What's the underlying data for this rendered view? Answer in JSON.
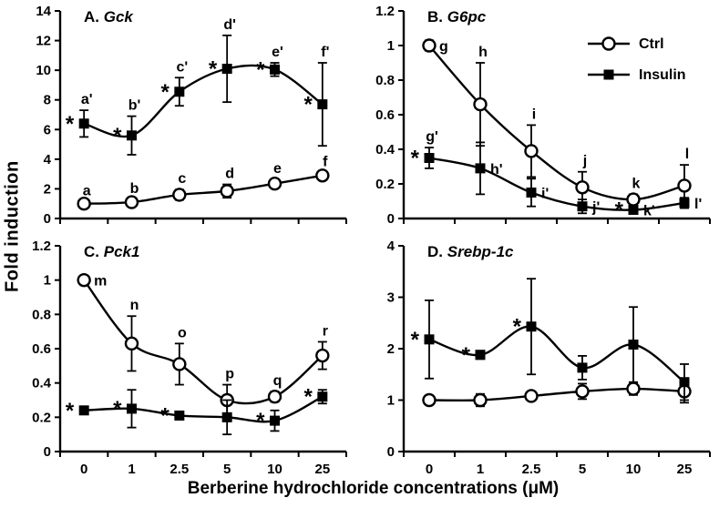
{
  "figure": {
    "ylabel": "Fold induction",
    "xlabel": "Berberine hydrochloride concentrations (μM)",
    "background_color": "#ffffff",
    "ink_color": "#000000"
  },
  "legend": {
    "position": "top-right-of-panel-B",
    "items": [
      {
        "label": "Ctrl",
        "marker": "circle-open"
      },
      {
        "label": "Insulin",
        "marker": "square-filled"
      }
    ]
  },
  "chart_data": [
    {
      "type": "line",
      "panel": "A",
      "title_prefix": "A.",
      "gene": "Gck",
      "categories": [
        "0",
        "1",
        "2.5",
        "5",
        "10",
        "25"
      ],
      "ylim": [
        0,
        14
      ],
      "yticks": [
        "0",
        "2",
        "4",
        "6",
        "8",
        "10",
        "12",
        "14"
      ],
      "grid": false,
      "series": [
        {
          "name": "Ctrl",
          "marker": "circle-open",
          "values": [
            1.0,
            1.1,
            1.6,
            1.85,
            2.35,
            2.9
          ],
          "errors": [
            0.15,
            0.2,
            0.35,
            0.45,
            0.3,
            0.2
          ],
          "point_labels": [
            "a",
            "b",
            "c",
            "d",
            "e",
            "f"
          ],
          "label_side": [
            "above",
            "above",
            "above",
            "above",
            "above",
            "above"
          ],
          "sig": [
            false,
            false,
            false,
            false,
            false,
            false
          ]
        },
        {
          "name": "Insulin",
          "marker": "square-filled",
          "values": [
            6.4,
            5.6,
            8.55,
            10.1,
            10.05,
            7.7
          ],
          "errors": [
            0.9,
            1.3,
            0.95,
            2.25,
            0.45,
            2.8
          ],
          "point_labels": [
            "a'",
            "b'",
            "c'",
            "d'",
            "e'",
            "f'"
          ],
          "label_side": [
            "above",
            "above",
            "above",
            "above",
            "above",
            "above"
          ],
          "sig": [
            true,
            true,
            true,
            true,
            true,
            true
          ]
        }
      ]
    },
    {
      "type": "line",
      "panel": "B",
      "title_prefix": "B.",
      "gene": "G6pc",
      "categories": [
        "0",
        "1",
        "2.5",
        "5",
        "10",
        "25"
      ],
      "ylim": [
        0,
        1.2
      ],
      "yticks": [
        "0",
        "0.2",
        "0.4",
        "0.6",
        "0.8",
        "1",
        "1.2"
      ],
      "grid": false,
      "series": [
        {
          "name": "Ctrl",
          "marker": "circle-open",
          "values": [
            1.0,
            0.66,
            0.39,
            0.18,
            0.11,
            0.19
          ],
          "errors": [
            0.03,
            0.24,
            0.15,
            0.09,
            0.03,
            0.12
          ],
          "point_labels": [
            "g",
            "h",
            "i",
            "j",
            "k",
            "l"
          ],
          "label_side": [
            "right",
            "above",
            "above",
            "above",
            "above",
            "above"
          ],
          "sig": [
            false,
            false,
            false,
            false,
            false,
            false
          ]
        },
        {
          "name": "Insulin",
          "marker": "square-filled",
          "values": [
            0.35,
            0.29,
            0.15,
            0.07,
            0.05,
            0.09
          ],
          "errors": [
            0.06,
            0.15,
            0.08,
            0.04,
            0.02,
            0.03
          ],
          "point_labels": [
            "g'",
            "h'",
            "i'",
            "j'",
            "k'",
            "l'"
          ],
          "label_side": [
            "above",
            "right",
            "right",
            "right",
            "right",
            "right"
          ],
          "sig": [
            true,
            false,
            false,
            false,
            true,
            false
          ]
        }
      ]
    },
    {
      "type": "line",
      "panel": "C",
      "title_prefix": "C.",
      "gene": "Pck1",
      "categories": [
        "0",
        "1",
        "2.5",
        "5",
        "10",
        "25"
      ],
      "ylim": [
        0,
        1.2
      ],
      "yticks": [
        "0",
        "0.2",
        "0.4",
        "0.6",
        "0.8",
        "1",
        "1.2"
      ],
      "grid": false,
      "series": [
        {
          "name": "Ctrl",
          "marker": "circle-open",
          "values": [
            1.0,
            0.63,
            0.51,
            0.3,
            0.32,
            0.56
          ],
          "errors": [
            0.02,
            0.16,
            0.12,
            0.09,
            0.03,
            0.08
          ],
          "point_labels": [
            "m",
            "n",
            "o",
            "p",
            "q",
            "r"
          ],
          "label_side": [
            "right",
            "above",
            "above",
            "above",
            "above",
            "above"
          ],
          "sig": [
            false,
            false,
            false,
            false,
            false,
            false
          ]
        },
        {
          "name": "Insulin",
          "marker": "square-filled",
          "values": [
            0.24,
            0.25,
            0.21,
            0.2,
            0.18,
            0.32
          ],
          "errors": [
            0.02,
            0.11,
            0.02,
            0.1,
            0.06,
            0.04
          ],
          "point_labels": [
            "",
            "",
            "",
            "",
            "",
            ""
          ],
          "label_side": [
            "above",
            "above",
            "above",
            "above",
            "above",
            "above"
          ],
          "sig": [
            true,
            true,
            true,
            false,
            true,
            true
          ]
        }
      ]
    },
    {
      "type": "line",
      "panel": "D",
      "title_prefix": "D.",
      "gene": "Srebp-1c",
      "categories": [
        "0",
        "1",
        "2.5",
        "5",
        "10",
        "25"
      ],
      "ylim": [
        0,
        4
      ],
      "yticks": [
        "0",
        "1",
        "2",
        "3",
        "4"
      ],
      "grid": false,
      "series": [
        {
          "name": "Ctrl",
          "marker": "circle-open",
          "values": [
            1.0,
            1.0,
            1.08,
            1.17,
            1.22,
            1.17
          ],
          "errors": [
            0.04,
            0.12,
            0.08,
            0.15,
            0.12,
            0.22
          ],
          "point_labels": [
            "",
            "",
            "",
            "",
            "",
            ""
          ],
          "label_side": [
            "above",
            "above",
            "above",
            "above",
            "above",
            "above"
          ],
          "sig": [
            false,
            false,
            false,
            false,
            false,
            false
          ]
        },
        {
          "name": "Insulin",
          "marker": "square-filled",
          "values": [
            2.18,
            1.88,
            2.43,
            1.63,
            2.08,
            1.35
          ],
          "errors": [
            0.76,
            0.08,
            0.93,
            0.23,
            0.73,
            0.35
          ],
          "point_labels": [
            "",
            "",
            "",
            "",
            "",
            ""
          ],
          "label_side": [
            "above",
            "above",
            "above",
            "above",
            "above",
            "above"
          ],
          "sig": [
            true,
            true,
            true,
            false,
            false,
            false
          ]
        }
      ]
    }
  ]
}
